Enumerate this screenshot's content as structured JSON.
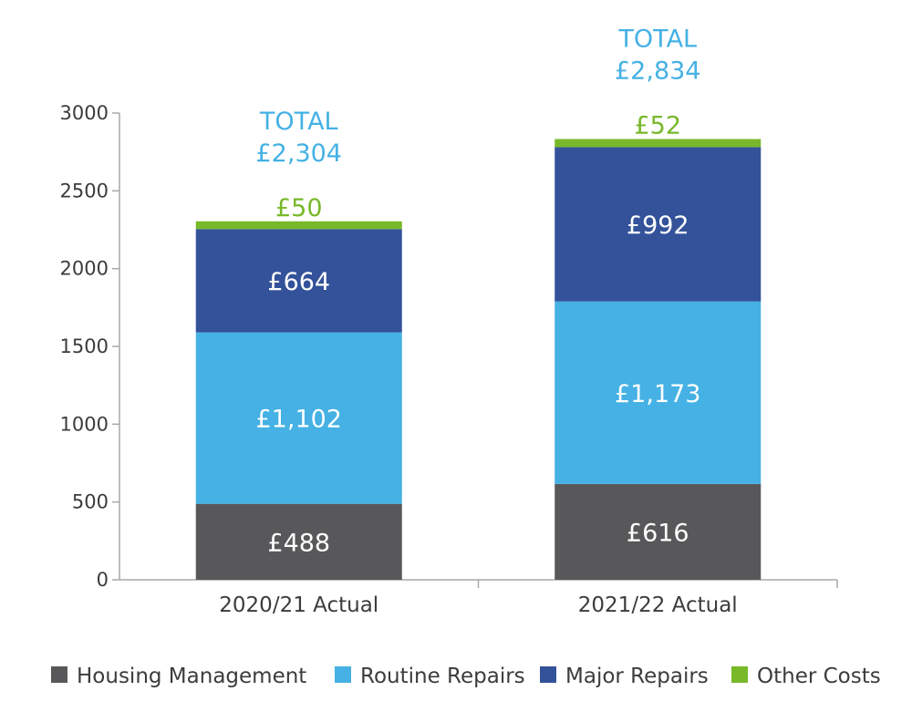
{
  "chart_data": {
    "type": "bar",
    "stacked": true,
    "categories": [
      "2020/21 Actual",
      "2021/22 Actual"
    ],
    "series": [
      {
        "name": "Housing Management",
        "color": "#58585a",
        "values": [
          488,
          616
        ],
        "labels": [
          "£488",
          "£616"
        ]
      },
      {
        "name": "Routine Repairs",
        "color": "#45b1e4",
        "values": [
          1102,
          1173
        ],
        "labels": [
          "£1,102",
          "£1,173"
        ]
      },
      {
        "name": "Major Repairs",
        "color": "#33529a",
        "values": [
          664,
          992
        ],
        "labels": [
          "£664",
          "£992"
        ]
      },
      {
        "name": "Other Costs",
        "color": "#78b829",
        "values": [
          50,
          52
        ],
        "labels": [
          "£50",
          "£52"
        ]
      }
    ],
    "totals": [
      {
        "prefix": "TOTAL",
        "value": "£2,304"
      },
      {
        "prefix": "TOTAL",
        "value": "£2,834"
      }
    ],
    "total_color": "#45b1e4",
    "ylim": [
      0,
      3000
    ],
    "yticks": [
      0,
      500,
      1000,
      1500,
      2000,
      2500,
      3000
    ],
    "grid": false,
    "legend_position": "bottom"
  }
}
